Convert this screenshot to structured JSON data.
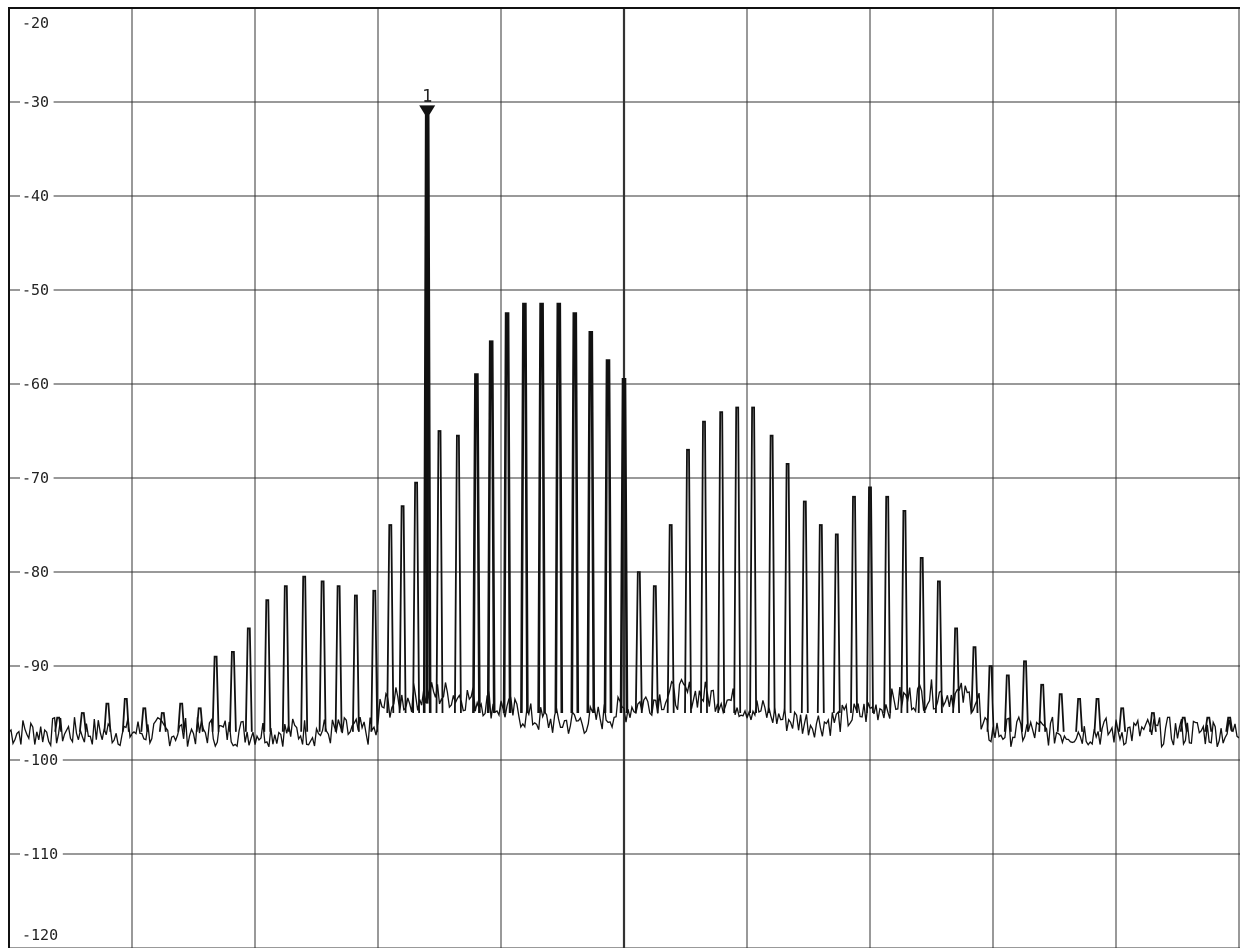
{
  "chart_data": {
    "type": "line",
    "title": "",
    "xlabel": "",
    "ylabel": "",
    "ylim": [
      -120,
      -20
    ],
    "yticks": [
      "-20",
      "-30",
      "-40",
      "-50",
      "-60",
      "-70",
      "-80",
      "-90",
      "-100",
      "-110",
      "-120"
    ],
    "xlim": [
      0,
      10
    ],
    "x_divisions": 10,
    "y_divisions": 10,
    "grid": true,
    "noise_floor": -97,
    "colors": {
      "trace": "#111111",
      "grid": "#333333",
      "background": "#ffffff"
    },
    "marker": {
      "label": "1",
      "x": 3.4,
      "y": -31
    },
    "series": [
      {
        "values": [
          [
            0.4,
            -95.5
          ],
          [
            0.6,
            -95
          ],
          [
            0.8,
            -94
          ],
          [
            0.95,
            -93.5
          ],
          [
            1.1,
            -94.5
          ],
          [
            1.25,
            -95
          ],
          [
            1.4,
            -94
          ],
          [
            1.55,
            -94.5
          ],
          [
            1.68,
            -89
          ],
          [
            1.82,
            -88.5
          ],
          [
            1.95,
            -86
          ],
          [
            2.1,
            -83
          ],
          [
            2.25,
            -81.5
          ],
          [
            2.4,
            -80.5
          ],
          [
            2.55,
            -81
          ],
          [
            2.68,
            -81.5
          ],
          [
            2.82,
            -82.5
          ],
          [
            2.97,
            -82
          ],
          [
            3.1,
            -75
          ],
          [
            3.2,
            -73
          ],
          [
            3.31,
            -70.5
          ],
          [
            3.4,
            -31
          ],
          [
            3.5,
            -65
          ],
          [
            3.65,
            -65.5
          ],
          [
            3.8,
            -59
          ],
          [
            3.92,
            -55.5
          ],
          [
            4.05,
            -52.5
          ],
          [
            4.19,
            -51.5
          ],
          [
            4.33,
            -51.5
          ],
          [
            4.47,
            -51.5
          ],
          [
            4.6,
            -52.5
          ],
          [
            4.73,
            -54.5
          ],
          [
            4.87,
            -57.5
          ],
          [
            5.0,
            -59.5
          ],
          [
            5.12,
            -80
          ],
          [
            5.25,
            -81.5
          ],
          [
            5.38,
            -75
          ],
          [
            5.52,
            -67
          ],
          [
            5.65,
            -64
          ],
          [
            5.79,
            -63
          ],
          [
            5.92,
            -62.5
          ],
          [
            6.05,
            -62.5
          ],
          [
            6.2,
            -65.5
          ],
          [
            6.33,
            -68.5
          ],
          [
            6.47,
            -72.5
          ],
          [
            6.6,
            -75
          ],
          [
            6.73,
            -76
          ],
          [
            6.87,
            -72
          ],
          [
            7.0,
            -71
          ],
          [
            7.14,
            -72
          ],
          [
            7.28,
            -73.5
          ],
          [
            7.42,
            -78.5
          ],
          [
            7.56,
            -81
          ],
          [
            7.7,
            -86
          ],
          [
            7.85,
            -88
          ],
          [
            7.98,
            -90
          ],
          [
            8.12,
            -91
          ],
          [
            8.26,
            -89.5
          ],
          [
            8.4,
            -92
          ],
          [
            8.55,
            -93
          ],
          [
            8.7,
            -93.5
          ],
          [
            8.85,
            -93.5
          ],
          [
            9.05,
            -94.5
          ],
          [
            9.3,
            -95
          ],
          [
            9.55,
            -95.5
          ],
          [
            9.75,
            -95.5
          ],
          [
            9.92,
            -95.5
          ]
        ]
      }
    ]
  }
}
